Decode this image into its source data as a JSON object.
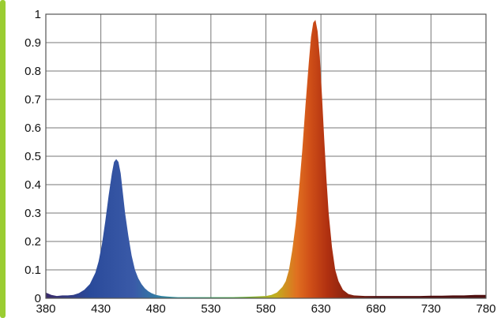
{
  "chart_data": {
    "type": "area",
    "title": "",
    "xlabel": "",
    "ylabel": "",
    "xlim": [
      380,
      780
    ],
    "ylim": [
      0,
      1
    ],
    "grid": true,
    "legend": "none",
    "x_ticks": [
      "380",
      "430",
      "480",
      "530",
      "580",
      "630",
      "680",
      "730",
      "780"
    ],
    "y_ticks": [
      "0",
      "0.1",
      "0.2",
      "0.3",
      "0.4",
      "0.5",
      "0.6",
      "0.7",
      "0.8",
      "0.9",
      "1"
    ],
    "series": [
      {
        "x": [
          380,
          385,
          390,
          395,
          400,
          405,
          410,
          415,
          420,
          425,
          428,
          431,
          434,
          437,
          440,
          442,
          444,
          446,
          448,
          450,
          452,
          455,
          458,
          461,
          464,
          467,
          470,
          473,
          476,
          480,
          485,
          490,
          495,
          500,
          510,
          520,
          530,
          540,
          550,
          560,
          570,
          580,
          585,
          590,
          595,
          598,
          601,
          604,
          607,
          610,
          613,
          616,
          619,
          621,
          623,
          625,
          627,
          629,
          631,
          633,
          635,
          637,
          640,
          643,
          646,
          650,
          655,
          660,
          670,
          680,
          690,
          700,
          710,
          720,
          730,
          740,
          750,
          760,
          770,
          780
        ],
        "values": [
          0.02,
          0.012,
          0.008,
          0.01,
          0.01,
          0.012,
          0.018,
          0.03,
          0.05,
          0.09,
          0.13,
          0.19,
          0.27,
          0.36,
          0.44,
          0.48,
          0.49,
          0.48,
          0.44,
          0.37,
          0.3,
          0.22,
          0.15,
          0.1,
          0.07,
          0.05,
          0.035,
          0.025,
          0.018,
          0.012,
          0.008,
          0.006,
          0.005,
          0.004,
          0.004,
          0.004,
          0.004,
          0.004,
          0.004,
          0.005,
          0.006,
          0.008,
          0.012,
          0.02,
          0.04,
          0.06,
          0.1,
          0.17,
          0.26,
          0.38,
          0.52,
          0.68,
          0.83,
          0.92,
          0.97,
          0.98,
          0.94,
          0.85,
          0.71,
          0.56,
          0.42,
          0.3,
          0.18,
          0.1,
          0.06,
          0.03,
          0.015,
          0.01,
          0.008,
          0.008,
          0.008,
          0.008,
          0.008,
          0.008,
          0.009,
          0.009,
          0.01,
          0.01,
          0.012,
          0.012
        ]
      }
    ],
    "colors": {
      "violet": "#3a2a6a",
      "blue": "#2a4a9a",
      "blue_light": "#3a5aa8",
      "cyan": "#2a9aa0",
      "green": "#40b040",
      "yellow": "#c0b020",
      "orange": "#e07020",
      "orange_red": "#d05018",
      "red": "#b03010",
      "dark_red": "#501010",
      "left_accent": "#9acd32"
    }
  }
}
